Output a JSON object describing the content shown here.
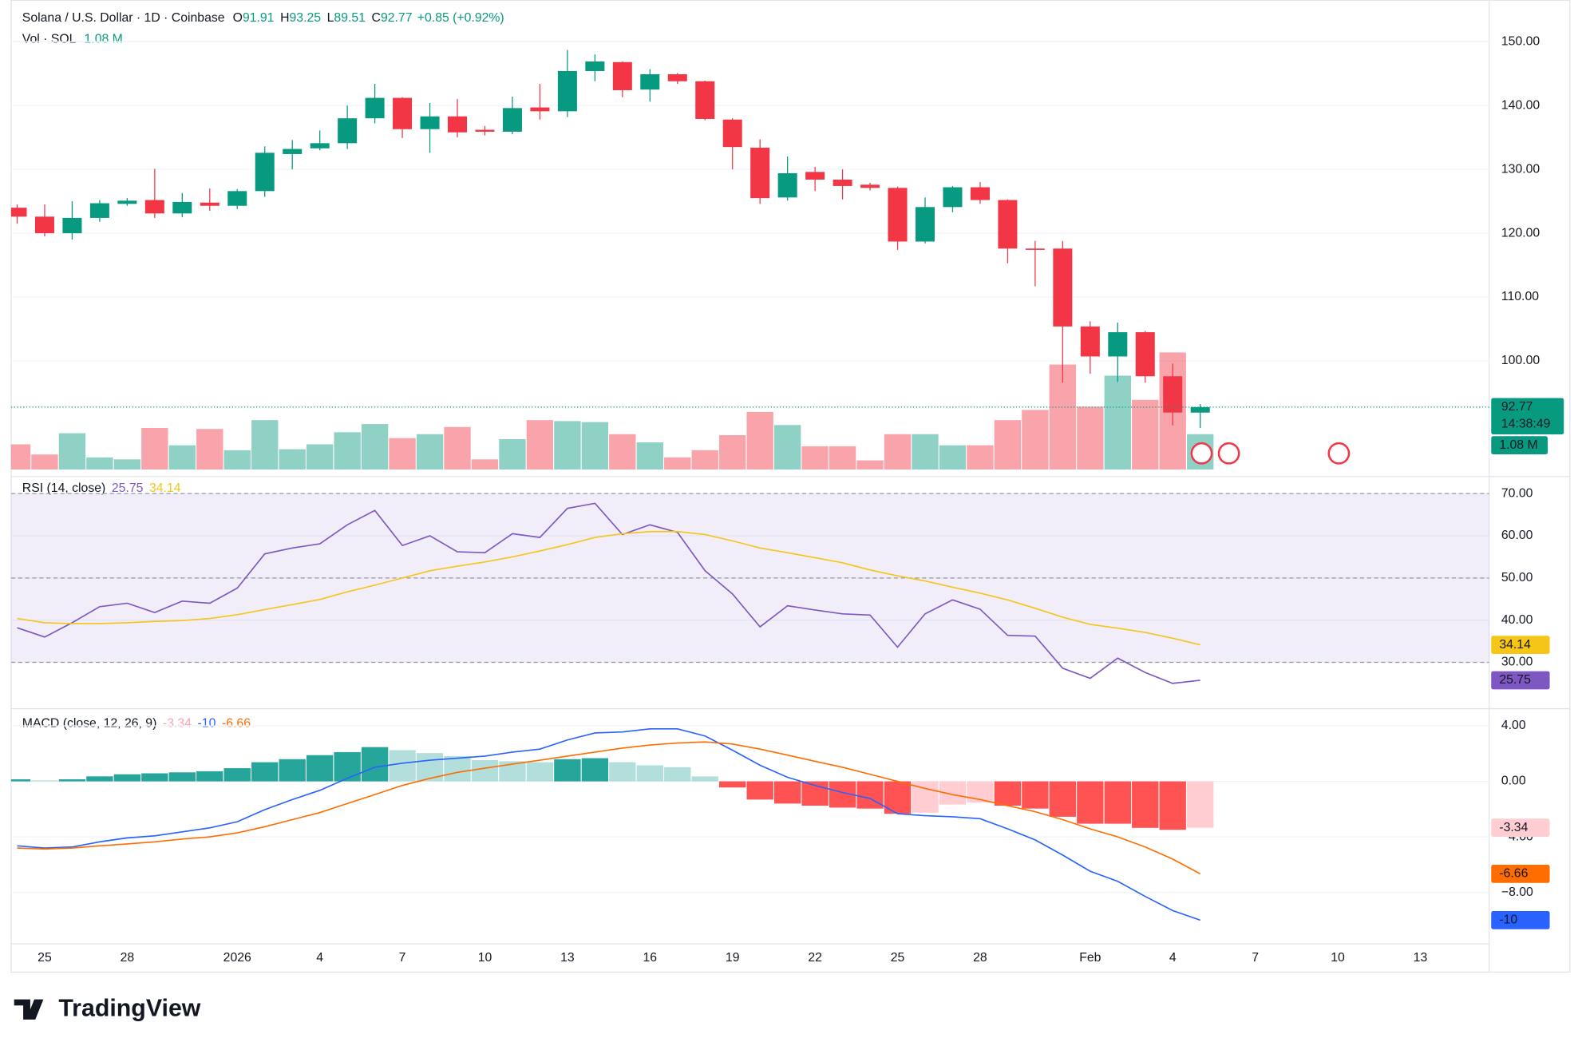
{
  "brand": "TradingView",
  "chart_data": [
    {
      "type": "candlestick",
      "title": "Solana / U.S. Dollar · 1D · Coinbase",
      "ohlc_labels": [
        "O",
        "H",
        "L",
        "C"
      ],
      "change": "+0.85 (+0.92%)",
      "volume_title": "Vol · SOL",
      "countdown": "14:38:49",
      "categories": [
        null,
        "25",
        null,
        null,
        "28",
        null,
        null,
        null,
        "2026",
        null,
        null,
        "4",
        null,
        null,
        "7",
        null,
        null,
        "10",
        null,
        null,
        "13",
        null,
        null,
        "16",
        null,
        null,
        "19",
        null,
        null,
        "22",
        null,
        null,
        "25",
        null,
        null,
        "28",
        null,
        null,
        null,
        "Feb",
        null,
        null,
        "4",
        null,
        null,
        "7",
        null,
        null,
        "10",
        null,
        null,
        "13",
        null,
        null
      ],
      "open": [
        124.0,
        122.6,
        120.0,
        122.4,
        124.6,
        125.2,
        123.1,
        124.8,
        124.3,
        126.6,
        132.4,
        133.3,
        134.1,
        138.0,
        141.2,
        136.3,
        138.3,
        136.2,
        135.9,
        139.7,
        139.1,
        145.4,
        146.8,
        142.5,
        144.9,
        143.8,
        137.8,
        133.4,
        125.6,
        129.6,
        128.4,
        127.6,
        127.1,
        118.7,
        124.1,
        127.2,
        125.2,
        117.6,
        117.6,
        105.4,
        100.7,
        104.5,
        97.6,
        91.91,
        null,
        null,
        null,
        null,
        null,
        null,
        null,
        null,
        null,
        null
      ],
      "high": [
        124.5,
        124.5,
        125.0,
        125.2,
        125.5,
        130.1,
        126.3,
        127.0,
        126.9,
        133.6,
        134.6,
        136.1,
        140.0,
        143.4,
        141.3,
        140.4,
        141.0,
        136.8,
        141.4,
        143.4,
        148.7,
        148.0,
        146.9,
        145.7,
        145.1,
        143.9,
        138.0,
        134.7,
        132.0,
        130.4,
        130.0,
        127.9,
        127.3,
        125.6,
        127.4,
        128.0,
        125.3,
        118.8,
        118.8,
        106.2,
        106.0,
        104.7,
        99.6,
        93.25,
        null,
        null,
        null,
        null,
        null,
        null,
        null,
        null,
        null,
        null
      ],
      "low": [
        121.5,
        119.5,
        119.0,
        121.8,
        124.3,
        122.4,
        122.5,
        123.5,
        123.8,
        125.7,
        130.0,
        133.0,
        133.2,
        137.2,
        134.9,
        132.6,
        135.0,
        135.3,
        135.5,
        137.8,
        138.2,
        143.8,
        141.3,
        140.6,
        143.4,
        137.7,
        130.0,
        124.6,
        125.1,
        126.6,
        125.3,
        126.7,
        117.4,
        118.4,
        123.3,
        124.6,
        115.3,
        111.7,
        96.6,
        98.0,
        96.7,
        96.6,
        89.9,
        89.51,
        null,
        null,
        null,
        null,
        null,
        null,
        null,
        null,
        null,
        null
      ],
      "close": [
        122.6,
        120.0,
        122.4,
        124.7,
        125.1,
        123.1,
        124.9,
        124.3,
        126.6,
        132.6,
        133.2,
        134.1,
        138.0,
        141.2,
        136.3,
        138.3,
        135.8,
        135.9,
        139.6,
        139.1,
        145.4,
        146.9,
        142.4,
        144.9,
        143.8,
        137.9,
        133.5,
        125.5,
        129.4,
        128.4,
        127.4,
        127.1,
        118.7,
        124.1,
        127.2,
        125.2,
        117.6,
        117.4,
        105.4,
        100.7,
        104.5,
        97.6,
        91.92,
        92.77,
        null,
        null,
        null,
        null,
        null,
        null,
        null,
        null,
        null,
        null
      ],
      "volume": {
        "values": [
          0.77,
          0.46,
          1.11,
          0.37,
          0.31,
          1.27,
          0.74,
          1.24,
          0.59,
          1.51,
          0.62,
          0.77,
          1.14,
          1.39,
          0.96,
          1.08,
          1.3,
          0.31,
          0.93,
          1.51,
          1.48,
          1.45,
          1.08,
          0.83,
          0.37,
          0.59,
          1.05,
          1.76,
          1.36,
          0.71,
          0.71,
          0.28,
          1.08,
          1.08,
          0.74,
          0.74,
          1.51,
          1.82,
          3.21,
          1.92,
          2.87,
          2.13,
          3.58,
          1.08,
          null,
          null,
          null,
          null,
          null,
          null,
          null,
          null,
          null,
          null
        ],
        "value_labels": [
          null,
          null,
          null,
          null,
          null,
          null,
          null,
          null,
          null,
          null,
          null,
          null,
          null,
          null,
          null,
          null,
          null,
          null,
          null,
          null,
          null,
          null,
          null,
          null,
          null,
          null,
          null,
          null,
          null,
          null,
          null,
          null,
          null,
          null,
          null,
          null,
          null,
          null,
          null,
          null,
          null,
          null,
          null,
          "1.08 M",
          null,
          null,
          null,
          null,
          null,
          null,
          null,
          null,
          null,
          null
        ]
      },
      "up_color": "#089981",
      "down_color": "#f23645",
      "ylim": [
        83.0,
        154.6
      ],
      "yticks": [
        {
          "value": 100,
          "label": "100.00"
        },
        {
          "value": 110,
          "label": "110.00"
        },
        {
          "value": 120,
          "label": "120.00"
        },
        {
          "value": 130,
          "label": "130.00"
        },
        {
          "value": 140,
          "label": "140.00"
        },
        {
          "value": 150,
          "label": "150.00"
        }
      ],
      "grid": true
    },
    {
      "type": "line",
      "title": "RSI (14, close)",
      "ylim": [
        20.2,
        72.6
      ],
      "yticks": [
        {
          "value": 30,
          "label": "30.00"
        },
        {
          "value": 40,
          "label": "40.00"
        },
        {
          "value": 50,
          "label": "50.00"
        },
        {
          "value": 60,
          "label": "60.00"
        },
        {
          "value": 70,
          "label": "70.00"
        }
      ],
      "levels": [
        70,
        50,
        30
      ],
      "band_color": "#7e57c2",
      "series": [
        {
          "color": "#7e57c2",
          "values": [
            38.2,
            36.0,
            39.4,
            43.2,
            44.0,
            41.8,
            44.5,
            44.0,
            47.6,
            55.7,
            57.1,
            58.1,
            62.6,
            66.0,
            57.7,
            60.0,
            56.2,
            56.0,
            60.5,
            59.6,
            66.5,
            67.7,
            60.3,
            62.6,
            60.8,
            51.7,
            46.2,
            38.4,
            43.4,
            42.4,
            41.5,
            41.2,
            33.6,
            41.5,
            44.8,
            42.6,
            36.4,
            36.2,
            28.6,
            26.2,
            31.0,
            27.6,
            25.0,
            25.75,
            null,
            null,
            null,
            null,
            null,
            null,
            null,
            null,
            null,
            null
          ]
        },
        {
          "color": "#f5c518",
          "values": [
            40.4,
            39.4,
            39.2,
            39.2,
            39.4,
            39.7,
            39.9,
            40.4,
            41.3,
            42.5,
            43.7,
            44.9,
            46.7,
            48.3,
            50.0,
            51.7,
            52.8,
            53.8,
            55.0,
            56.4,
            57.9,
            59.6,
            60.5,
            61.0,
            61.0,
            60.3,
            58.8,
            57.1,
            56.0,
            54.8,
            53.6,
            51.9,
            50.5,
            49.3,
            47.8,
            46.4,
            44.8,
            42.8,
            40.7,
            39.0,
            38.1,
            37.1,
            35.7,
            34.14,
            null,
            null,
            null,
            null,
            null,
            null,
            null,
            null,
            null,
            null
          ]
        }
      ]
    },
    {
      "type": "macd",
      "title": "MACD (close, 12, 26, 9)",
      "ylim": [
        -11.71,
        4.8
      ],
      "yticks": [
        {
          "value": 4,
          "label": "4.00"
        },
        {
          "value": 0,
          "label": "0.00"
        },
        {
          "value": -4,
          "label": "−4.00"
        },
        {
          "value": -8,
          "label": "−8.00"
        }
      ],
      "histogram": {
        "colors": [
          "#26a69a",
          "#b2dfdb",
          "#ff5252",
          "#ffcdd2"
        ],
        "values": [
          0.15,
          0.07,
          0.15,
          0.36,
          0.51,
          0.58,
          0.65,
          0.73,
          0.95,
          1.38,
          1.6,
          1.89,
          2.11,
          2.47,
          2.25,
          2.04,
          1.82,
          1.53,
          1.45,
          1.38,
          1.6,
          1.67,
          1.38,
          1.16,
          1.02,
          0.36,
          -0.44,
          -1.31,
          -1.6,
          -1.75,
          -1.89,
          -1.96,
          -2.33,
          -2.25,
          -1.67,
          -1.53,
          -1.75,
          -1.96,
          -2.55,
          -3.05,
          -3.05,
          -3.35,
          -3.49,
          -3.34,
          null,
          null,
          null,
          null,
          null,
          null,
          null,
          null,
          null,
          null
        ]
      },
      "series": [
        {
          "color": "#2962ff",
          "values": [
            -4.65,
            -4.8,
            -4.73,
            -4.36,
            -4.07,
            -3.93,
            -3.64,
            -3.35,
            -2.91,
            -2.04,
            -1.31,
            -0.65,
            0.22,
            1.02,
            1.31,
            1.53,
            1.67,
            1.82,
            2.11,
            2.33,
            2.98,
            3.49,
            3.56,
            3.78,
            3.78,
            3.27,
            2.25,
            1.16,
            0.29,
            -0.29,
            -0.8,
            -1.24,
            -2.33,
            -2.47,
            -2.55,
            -2.69,
            -3.42,
            -4.22,
            -5.31,
            -6.47,
            -7.2,
            -8.29,
            -9.31,
            -10.0,
            null,
            null,
            null,
            null,
            null,
            null,
            null,
            null,
            null,
            null
          ]
        },
        {
          "color": "#ff6d00",
          "values": [
            -4.8,
            -4.87,
            -4.8,
            -4.65,
            -4.51,
            -4.36,
            -4.15,
            -4.0,
            -3.71,
            -3.27,
            -2.76,
            -2.25,
            -1.6,
            -0.95,
            -0.29,
            0.22,
            0.65,
            0.95,
            1.24,
            1.53,
            1.82,
            2.11,
            2.4,
            2.62,
            2.76,
            2.84,
            2.69,
            2.33,
            1.89,
            1.45,
            1.02,
            0.51,
            0.0,
            -0.51,
            -0.95,
            -1.31,
            -1.75,
            -2.18,
            -2.76,
            -3.42,
            -4.0,
            -4.73,
            -5.6,
            -6.66,
            null,
            null,
            null,
            null,
            null,
            null,
            null,
            null,
            null,
            null
          ]
        }
      ]
    }
  ]
}
